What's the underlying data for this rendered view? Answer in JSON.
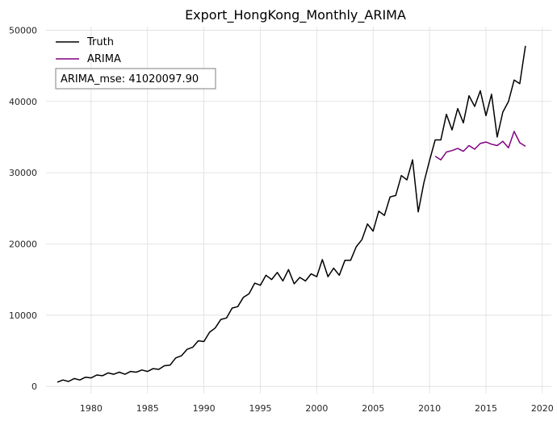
{
  "chart_data": {
    "type": "line",
    "title": "Export_HongKong_Monthly_ARIMA",
    "xlabel": "",
    "ylabel": "",
    "xlim": [
      1976.0,
      2020.8
    ],
    "ylim": [
      -1000,
      50500
    ],
    "x_ticks": [
      1980,
      1985,
      1990,
      1995,
      2000,
      2005,
      2010,
      2015,
      2020
    ],
    "y_ticks": [
      0,
      10000,
      20000,
      30000,
      40000,
      50000
    ],
    "grid": true,
    "legend_position": "top-left",
    "annotation": "ARIMA_mse: 41020097.90",
    "series": [
      {
        "name": "Truth",
        "color": "#000000",
        "x": [
          1977.0,
          1977.5,
          1978.0,
          1978.5,
          1979.0,
          1979.5,
          1980.0,
          1980.5,
          1981.0,
          1981.5,
          1982.0,
          1982.5,
          1983.0,
          1983.5,
          1984.0,
          1984.5,
          1985.0,
          1985.5,
          1986.0,
          1986.5,
          1987.0,
          1987.5,
          1988.0,
          1988.5,
          1989.0,
          1989.5,
          1990.0,
          1990.5,
          1991.0,
          1991.5,
          1992.0,
          1992.5,
          1993.0,
          1993.5,
          1994.0,
          1994.5,
          1995.0,
          1995.5,
          1996.0,
          1996.5,
          1997.0,
          1997.5,
          1998.0,
          1998.5,
          1999.0,
          1999.5,
          2000.0,
          2000.5,
          2001.0,
          2001.5,
          2002.0,
          2002.5,
          2003.0,
          2003.5,
          2004.0,
          2004.5,
          2005.0,
          2005.5,
          2006.0,
          2006.5,
          2007.0,
          2007.5,
          2008.0,
          2008.5,
          2009.0,
          2009.5,
          2010.0,
          2010.5,
          2011.0,
          2011.5,
          2012.0,
          2012.5,
          2013.0,
          2013.5,
          2014.0,
          2014.5,
          2015.0,
          2015.5,
          2016.0,
          2016.5,
          2017.0,
          2017.5,
          2018.0,
          2018.5
        ],
        "y": [
          600,
          900,
          700,
          1100,
          900,
          1300,
          1200,
          1600,
          1500,
          1900,
          1700,
          2000,
          1700,
          2100,
          2000,
          2300,
          2100,
          2500,
          2400,
          2900,
          3000,
          4000,
          4300,
          5200,
          5500,
          6400,
          6300,
          7600,
          8200,
          9400,
          9600,
          11000,
          11200,
          12500,
          13000,
          14500,
          14200,
          15600,
          15000,
          16000,
          14800,
          16400,
          14400,
          15300,
          14800,
          15800,
          15400,
          17800,
          15400,
          16600,
          15600,
          17700,
          17700,
          19600,
          20600,
          22800,
          21800,
          24600,
          24000,
          26600,
          26800,
          29600,
          29000,
          31800,
          24500,
          28600,
          31700,
          34600,
          34600,
          38200,
          36000,
          39000,
          37000,
          40800,
          39300,
          41500,
          38000,
          41000,
          35000,
          38500,
          40000,
          43000,
          42500,
          47800
        ]
      },
      {
        "name": "ARIMA",
        "color": "#800080",
        "x": [
          2010.5,
          2011.0,
          2011.5,
          2012.0,
          2012.5,
          2013.0,
          2013.5,
          2014.0,
          2014.5,
          2015.0,
          2015.5,
          2016.0,
          2016.5,
          2017.0,
          2017.5,
          2018.0,
          2018.5
        ],
        "y": [
          32300,
          31800,
          32900,
          33100,
          33400,
          33000,
          33800,
          33300,
          34100,
          34300,
          34000,
          33800,
          34400,
          33500,
          35800,
          34200,
          33700
        ]
      }
    ]
  }
}
